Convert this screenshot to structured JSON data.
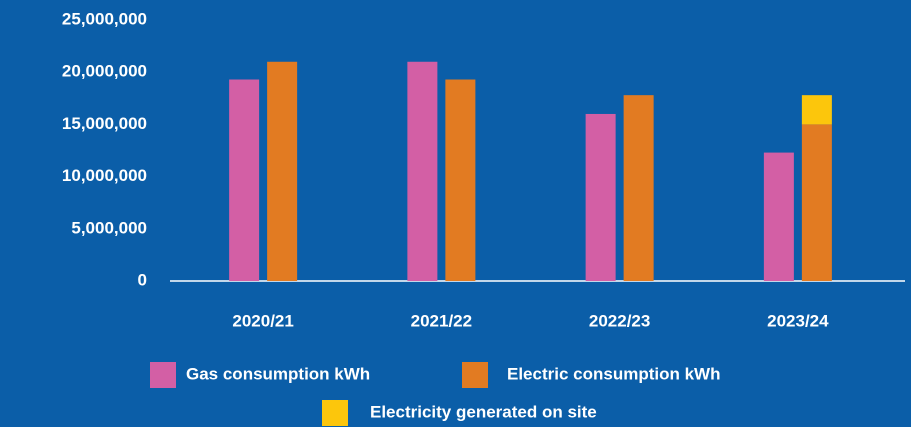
{
  "chart_data": {
    "type": "bar",
    "categories": [
      "2020/21",
      "2021/22",
      "2022/23",
      "2023/24"
    ],
    "series": [
      {
        "name": "Gas consumption kWh",
        "color": "#d35fa5",
        "values": [
          19300000,
          21000000,
          16000000,
          12300000
        ]
      },
      {
        "name": "Electric consumption kWh",
        "color": "#e27b22",
        "values": [
          21000000,
          19300000,
          17800000,
          15000000
        ]
      },
      {
        "name": "Electricity generated on site",
        "color": "#fcc60c",
        "values": [
          null,
          null,
          null,
          2800000
        ],
        "stack": true
      }
    ],
    "ylim": [
      0,
      25000000
    ],
    "yticks": [
      0,
      {
        "value": 5000000,
        "label": "5,000,000"
      },
      {
        "value": 10000000,
        "label": "10,000,000"
      },
      {
        "value": 15000000,
        "label": "15,000,000"
      },
      {
        "value": 20000000,
        "label": "20,000,000"
      },
      {
        "value": 25000000,
        "label": "25,000,000"
      }
    ],
    "grid": false,
    "legend": "bottom"
  }
}
